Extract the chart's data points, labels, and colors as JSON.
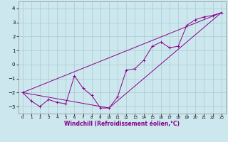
{
  "xlabel": "Windchill (Refroidissement éolien,°C)",
  "bg_color": "#cce8ee",
  "grid_color": "#aac8d0",
  "line_color": "#880088",
  "xlim": [
    -0.5,
    23.5
  ],
  "ylim": [
    -3.5,
    4.5
  ],
  "xticks": [
    0,
    1,
    2,
    3,
    4,
    5,
    6,
    7,
    8,
    9,
    10,
    11,
    12,
    13,
    14,
    15,
    16,
    17,
    18,
    19,
    20,
    21,
    22,
    23
  ],
  "yticks": [
    -3,
    -2,
    -1,
    0,
    1,
    2,
    3,
    4
  ],
  "connected_x": [
    0,
    1,
    2,
    3,
    4,
    5,
    6,
    7,
    8,
    9,
    10,
    11,
    12,
    13,
    14,
    15,
    16,
    17,
    18,
    19,
    20,
    21,
    22,
    23
  ],
  "connected_y": [
    -2.0,
    -2.6,
    -3.0,
    -2.5,
    -2.7,
    -2.8,
    -0.8,
    -1.7,
    -2.2,
    -3.1,
    -3.1,
    -2.3,
    -0.4,
    -0.3,
    0.3,
    1.3,
    1.6,
    1.2,
    1.3,
    2.8,
    3.2,
    3.4,
    3.5,
    3.7
  ],
  "line1_x": [
    0,
    23
  ],
  "line1_y": [
    -2.0,
    3.7
  ],
  "line2_x": [
    0,
    10,
    23
  ],
  "line2_y": [
    -2.0,
    -3.1,
    3.7
  ]
}
